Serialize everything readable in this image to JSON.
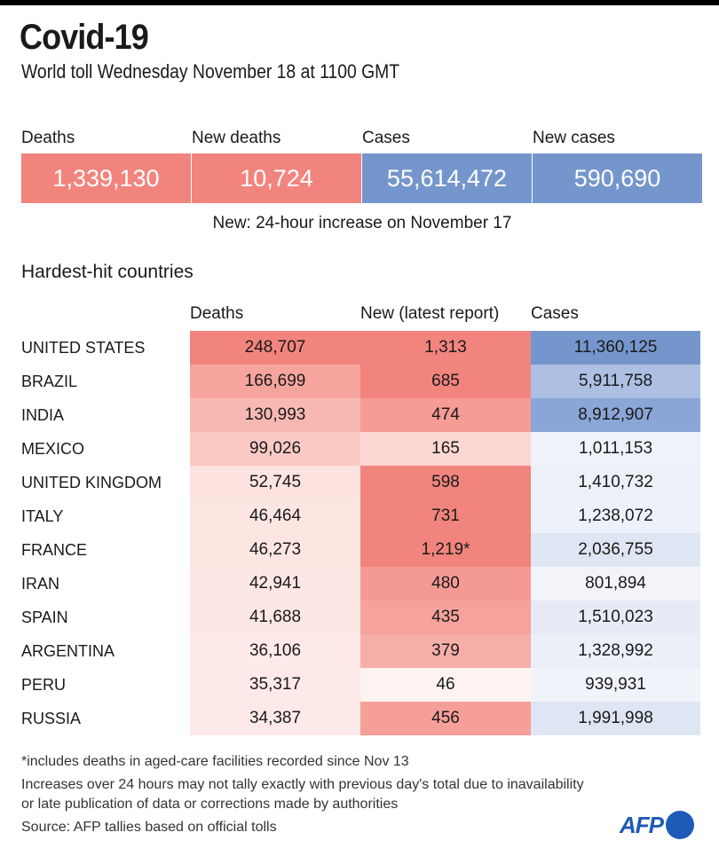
{
  "header": {
    "title": "Covid-19",
    "subtitle": "World toll Wednesday November 18 at 1100 GMT"
  },
  "summary": {
    "items": [
      {
        "label": "Deaths",
        "value": "1,339,130",
        "color": "#f2847e"
      },
      {
        "label": "New deaths",
        "value": "10,724",
        "color": "#f2847e"
      },
      {
        "label": "Cases",
        "value": "55,614,472",
        "color": "#7596cc"
      },
      {
        "label": "New cases",
        "value": "590,690",
        "color": "#7596cc"
      }
    ],
    "note": "New: 24-hour increase on November 17"
  },
  "section_title": "Hardest-hit countries",
  "chart_data": {
    "type": "table",
    "title": "Hardest-hit countries",
    "columns": [
      "Deaths",
      "New (latest report)",
      "Cases"
    ],
    "rows": [
      {
        "country": "UNITED STATES",
        "deaths": "248,707",
        "new": "1,313",
        "cases": "11,360,125",
        "deaths_color": "#f2847e",
        "new_color": "#f2847e",
        "cases_color": "#7596cc"
      },
      {
        "country": "BRAZIL",
        "deaths": "166,699",
        "new": "685",
        "cases": "5,911,758",
        "deaths_color": "#f6a49e",
        "new_color": "#f2847e",
        "cases_color": "#adbfe2"
      },
      {
        "country": "INDIA",
        "deaths": "130,993",
        "new": "474",
        "cases": "8,912,907",
        "deaths_color": "#f8b8b2",
        "new_color": "#f59c95",
        "cases_color": "#8aa6d6"
      },
      {
        "country": "MEXICO",
        "deaths": "99,026",
        "new": "165",
        "cases": "1,011,153",
        "deaths_color": "#fac9c4",
        "new_color": "#fbd7d3",
        "cases_color": "#eff2f9"
      },
      {
        "country": "UNITED KINGDOM",
        "deaths": "52,745",
        "new": "598",
        "cases": "1,410,732",
        "deaths_color": "#fde3e0",
        "new_color": "#f2847e",
        "cases_color": "#edf0f8"
      },
      {
        "country": "ITALY",
        "deaths": "46,464",
        "new": "731",
        "cases": "1,238,072",
        "deaths_color": "#fde5e2",
        "new_color": "#f2847e",
        "cases_color": "#eef1f9"
      },
      {
        "country": "FRANCE",
        "deaths": "46,273",
        "new": "1,219*",
        "cases": "2,036,755",
        "deaths_color": "#fde5e2",
        "new_color": "#f2847e",
        "cases_color": "#dfe6f3"
      },
      {
        "country": "IRAN",
        "deaths": "42,941",
        "new": "480",
        "cases": "801,894",
        "deaths_color": "#fde7e4",
        "new_color": "#f59a93",
        "cases_color": "#f2f4fa"
      },
      {
        "country": "SPAIN",
        "deaths": "41,688",
        "new": "435",
        "cases": "1,510,023",
        "deaths_color": "#fde7e4",
        "new_color": "#f6a39d",
        "cases_color": "#e6ebf6"
      },
      {
        "country": "ARGENTINA",
        "deaths": "36,106",
        "new": "379",
        "cases": "1,328,992",
        "deaths_color": "#fde9e7",
        "new_color": "#f8aea8",
        "cases_color": "#ebeff8"
      },
      {
        "country": "PERU",
        "deaths": "35,317",
        "new": "46",
        "cases": "939,931",
        "deaths_color": "#fde9e7",
        "new_color": "#fef3f1",
        "cases_color": "#f1f3fa"
      },
      {
        "country": "RUSSIA",
        "deaths": "34,387",
        "new": "456",
        "cases": "1,991,998",
        "deaths_color": "#fdeae8",
        "new_color": "#f59f98",
        "cases_color": "#dfe6f3"
      }
    ]
  },
  "footnotes": {
    "asterisk": "*includes deaths in aged-care facilities recorded since Nov 13",
    "disclaimer_line1": "Increases over 24 hours may not tally exactly with previous day's total due to inavailability",
    "disclaimer_line2": "or late publication of data or corrections made by authorities",
    "source": "Source: AFP tallies based on official tolls"
  },
  "logo": {
    "text": "AFP",
    "color": "#1e5bb8"
  }
}
